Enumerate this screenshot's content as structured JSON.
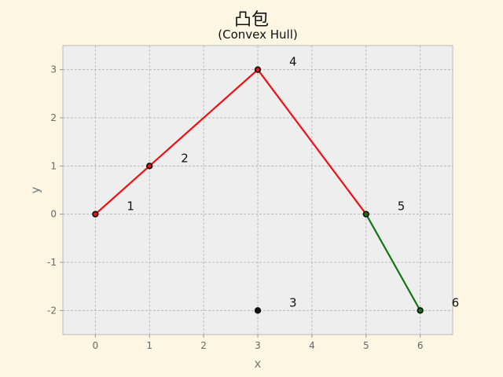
{
  "chart_data": {
    "type": "line",
    "title": "凸包",
    "subtitle": "(Convex Hull)",
    "xlabel": "x",
    "ylabel": "y",
    "xlim": [
      -0.6,
      6.6
    ],
    "ylim": [
      -2.5,
      3.5
    ],
    "xticks": [
      0,
      1,
      2,
      3,
      4,
      5,
      6
    ],
    "yticks": [
      -2,
      -1,
      0,
      1,
      2,
      3
    ],
    "grid": true,
    "points": [
      {
        "label": "1",
        "x": 0,
        "y": 0
      },
      {
        "label": "2",
        "x": 1,
        "y": 1
      },
      {
        "label": "3",
        "x": 3,
        "y": -2
      },
      {
        "label": "4",
        "x": 3,
        "y": 3
      },
      {
        "label": "5",
        "x": 5,
        "y": 0
      },
      {
        "label": "6",
        "x": 6,
        "y": -2
      }
    ],
    "series": [
      {
        "color": "#ee1111",
        "x": [
          0,
          1,
          3,
          5
        ],
        "y": [
          0,
          1,
          3,
          0
        ]
      },
      {
        "color": "#117711",
        "x": [
          5,
          6
        ],
        "y": [
          0,
          -2
        ]
      }
    ],
    "colors": {
      "background": "#fdf6e3",
      "plot_area": "#eeeeee",
      "grid": "#b0b0b0",
      "point_fill": "#111111"
    }
  }
}
